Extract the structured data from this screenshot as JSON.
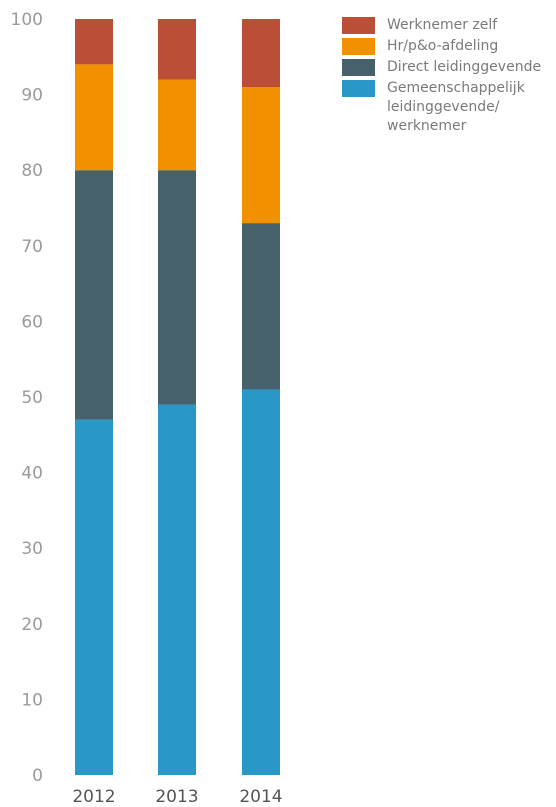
{
  "chart_data": {
    "type": "bar",
    "stacked": true,
    "categories": [
      "2012",
      "2013",
      "2014"
    ],
    "series": [
      {
        "name": "Gemeenschappelijk leidinggevende/ werknemer",
        "color": "#2a98c6",
        "values": [
          47,
          49,
          51
        ]
      },
      {
        "name": "Direct leidinggevende",
        "color": "#46606c",
        "values": [
          33,
          31,
          22
        ]
      },
      {
        "name": "Hr/p&o-afdeling",
        "color": "#f29100",
        "values": [
          14,
          12,
          18
        ]
      },
      {
        "name": "Werknemer zelf",
        "color": "#ba4e37",
        "values": [
          6,
          8,
          9
        ]
      }
    ],
    "yticks": [
      "0",
      "10",
      "20",
      "30",
      "40",
      "50",
      "60",
      "70",
      "80",
      "90",
      "100"
    ],
    "ylim": [
      0,
      100
    ],
    "grid": false,
    "legend_position": "top-right",
    "title": "",
    "xlabel": "",
    "ylabel": ""
  },
  "legend": [
    {
      "label": "Werknemer zelf",
      "color": "#ba4e37"
    },
    {
      "label": "Hr/p&o-afdeling",
      "color": "#f29100"
    },
    {
      "label": "Direct leidinggevende",
      "color": "#46606c"
    },
    {
      "label": "Gemeenschappelijk leidinggevende/ werknemer",
      "color": "#2a98c6"
    }
  ]
}
